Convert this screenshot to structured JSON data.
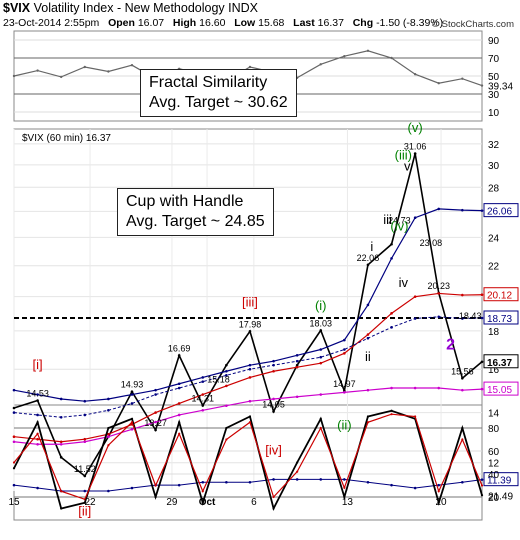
{
  "header": {
    "symbol": "$VIX",
    "name": "Volatility Index - New Methodology",
    "exchange": "INDX",
    "datetime": "23-Oct-2014 2:55pm",
    "open_label": "Open",
    "open": "16.07",
    "high_label": "High",
    "high": "16.60",
    "low_label": "Low",
    "low": "15.68",
    "last_label": "Last",
    "last": "16.37",
    "chg_label": "Chg",
    "chg": "-1.50 (-8.39%)",
    "copyright": "© StockCharts.com"
  },
  "top_panel": {
    "ticks": [
      "90",
      "70",
      "50",
      "30",
      "10"
    ],
    "last_value": "39.34"
  },
  "main_panel": {
    "legend": "$VIX (60 min) 16.37",
    "ticks": [
      "32",
      "30",
      "28",
      "26",
      "24",
      "22",
      "20",
      "18",
      "16",
      "14",
      "12"
    ],
    "right_labels": [
      {
        "text": "26.06",
        "value": 26.06,
        "color": "#000080"
      },
      {
        "text": "20.12",
        "value": 20.12,
        "color": "#cc0000"
      },
      {
        "text": "18.73",
        "value": 18.73,
        "color": "#000080"
      },
      {
        "text": "16.37",
        "value": 16.37,
        "color": "#000000"
      },
      {
        "text": "15.05",
        "value": 15.05,
        "color": "#cc00cc"
      },
      {
        "text": "11.39",
        "value": 11.39,
        "color": "#000080"
      }
    ],
    "boxes": [
      {
        "text": "Fractal Similarity\nAvg. Target ~ 30.62"
      },
      {
        "text": "Cup with Handle\nAvg. Target ~ 24.85"
      }
    ]
  },
  "bottom_panel": {
    "ticks": [
      "80",
      "60",
      "40",
      "20"
    ],
    "last_value": "21.49"
  },
  "x_axis": {
    "labels": [
      "15",
      "22",
      "29",
      "Oct",
      "6",
      "13",
      "20"
    ]
  },
  "chart_data": [
    {
      "type": "line",
      "panel": "top",
      "ylim": [
        0,
        100
      ],
      "x": [
        0,
        6,
        12,
        18,
        24,
        30,
        36,
        42,
        48,
        54,
        60,
        66,
        72,
        78,
        84,
        90,
        96,
        102,
        108,
        114,
        119
      ],
      "series": [
        {
          "values": [
            50,
            56,
            49,
            60,
            55,
            62,
            47,
            58,
            52,
            45,
            60,
            54,
            48,
            63,
            72,
            78,
            70,
            52,
            42,
            47,
            39.34
          ]
        }
      ],
      "ticks": [
        90,
        70,
        50,
        30,
        10
      ],
      "last_value": 39.34
    },
    {
      "type": "line",
      "panel": "main",
      "title": "$VIX (60 min) 16.37",
      "ylim": [
        11,
        33.5
      ],
      "x": [
        0,
        6,
        12,
        18,
        24,
        30,
        36,
        42,
        48,
        54,
        60,
        66,
        72,
        78,
        84,
        90,
        96,
        102,
        108,
        114,
        119
      ],
      "series": [
        {
          "values": [
            14.2,
            14.53,
            12.2,
            11.52,
            13.0,
            14.93,
            13.27,
            16.69,
            14.31,
            16.2,
            17.98,
            14.05,
            16.2,
            18.03,
            14.97,
            22.06,
            23.5,
            31.06,
            20.23,
            15.56,
            16.37
          ]
        },
        {
          "values": [
            15.0,
            14.8,
            14.6,
            14.5,
            14.6,
            14.8,
            15.0,
            15.3,
            15.6,
            15.9,
            16.2,
            16.4,
            16.7,
            17.0,
            17.5,
            19.5,
            22.5,
            25.5,
            26.2,
            26.1,
            26.06
          ]
        },
        {
          "values": [
            13.0,
            12.9,
            12.8,
            12.9,
            13.1,
            13.5,
            14.0,
            14.4,
            14.8,
            15.2,
            15.6,
            15.9,
            16.1,
            16.3,
            16.8,
            17.8,
            19.0,
            20.0,
            20.2,
            20.1,
            20.12
          ]
        },
        {
          "values": [
            14.0,
            13.9,
            13.8,
            13.9,
            14.1,
            14.4,
            14.8,
            15.1,
            15.4,
            15.7,
            16.0,
            16.2,
            16.4,
            16.6,
            17.0,
            17.6,
            18.2,
            18.7,
            18.8,
            18.7,
            18.73
          ]
        },
        {
          "values": [
            12.8,
            12.7,
            12.7,
            12.8,
            13.0,
            13.3,
            13.6,
            13.9,
            14.1,
            14.3,
            14.5,
            14.6,
            14.7,
            14.8,
            14.9,
            15.0,
            15.1,
            15.1,
            15.1,
            15.0,
            15.05
          ]
        },
        {
          "values": [
            11.2,
            11.1,
            11.0,
            11.0,
            11.0,
            11.1,
            11.2,
            11.2,
            11.3,
            11.3,
            11.3,
            11.4,
            11.4,
            11.4,
            11.4,
            11.3,
            11.2,
            11.1,
            11.2,
            11.3,
            11.39
          ]
        }
      ],
      "reference_lines": [
        18.73
      ],
      "annotations": [
        {
          "text": "14.53",
          "x": 6,
          "y": 14.53
        },
        {
          "text": "11.52",
          "x": 18,
          "y": 11.52
        },
        {
          "text": "14.93",
          "x": 30,
          "y": 14.93
        },
        {
          "text": "13.27",
          "x": 36,
          "y": 13.27
        },
        {
          "text": "16.69",
          "x": 42,
          "y": 16.69
        },
        {
          "text": "14.31",
          "x": 48,
          "y": 14.31
        },
        {
          "text": "15.18",
          "x": 52,
          "y": 15.18
        },
        {
          "text": "17.98",
          "x": 60,
          "y": 17.98
        },
        {
          "text": "14.05",
          "x": 66,
          "y": 14.05
        },
        {
          "text": "18.03",
          "x": 78,
          "y": 18.03
        },
        {
          "text": "14.97",
          "x": 84,
          "y": 14.97
        },
        {
          "text": "22.06",
          "x": 90,
          "y": 22.06
        },
        {
          "text": "24.73",
          "x": 98,
          "y": 24.73
        },
        {
          "text": "31.06",
          "x": 102,
          "y": 31.06
        },
        {
          "text": "23.08",
          "x": 106,
          "y": 23.08
        },
        {
          "text": "20.23",
          "x": 108,
          "y": 20.23
        },
        {
          "text": "18.43",
          "x": 116,
          "y": 18.43
        },
        {
          "text": "15.56",
          "x": 114,
          "y": 15.56
        }
      ],
      "wave_labels": [
        {
          "text": "[i]",
          "x": 6,
          "y": 16.0,
          "color": "#cc0000"
        },
        {
          "text": "[ii]",
          "x": 18,
          "y": 10.2,
          "color": "#cc0000"
        },
        {
          "text": "[iii]",
          "x": 60,
          "y": 19.4,
          "color": "#cc0000"
        },
        {
          "text": "[iv]",
          "x": 66,
          "y": 12.3,
          "color": "#cc0000"
        },
        {
          "text": "(i)",
          "x": 78,
          "y": 19.2,
          "color": "#008000"
        },
        {
          "text": "(ii)",
          "x": 84,
          "y": 13.3,
          "color": "#008000"
        },
        {
          "text": "i",
          "x": 91,
          "y": 23.0,
          "color": "#000000"
        },
        {
          "text": "ii",
          "x": 90,
          "y": 16.4,
          "color": "#000000"
        },
        {
          "text": "iii",
          "x": 95,
          "y": 25.0,
          "color": "#000000"
        },
        {
          "text": "iv",
          "x": 99,
          "y": 20.6,
          "color": "#000000"
        },
        {
          "text": "v",
          "x": 100,
          "y": 29.5,
          "color": "#000000"
        },
        {
          "text": "(iii)",
          "x": 99,
          "y": 30.5,
          "color": "#008000"
        },
        {
          "text": "(iv)",
          "x": 98,
          "y": 24.5,
          "color": "#008000"
        },
        {
          "text": "(v)",
          "x": 102,
          "y": 33.2,
          "color": "#008000"
        },
        {
          "text": "2",
          "x": 111,
          "y": 17.0,
          "color": "#9400d3"
        }
      ]
    },
    {
      "type": "line",
      "panel": "bottom",
      "ylim": [
        0,
        100
      ],
      "x": [
        0,
        6,
        12,
        18,
        24,
        30,
        36,
        42,
        48,
        54,
        60,
        66,
        72,
        78,
        84,
        90,
        96,
        102,
        108,
        114,
        119
      ],
      "series": [
        {
          "values": [
            45,
            85,
            10,
            15,
            80,
            88,
            20,
            85,
            15,
            80,
            90,
            10,
            50,
            88,
            20,
            90,
            95,
            88,
            15,
            80,
            21.49
          ]
        },
        {
          "values": [
            50,
            75,
            25,
            18,
            65,
            85,
            30,
            75,
            25,
            70,
            85,
            20,
            42,
            80,
            28,
            85,
            92,
            90,
            25,
            70,
            30
          ]
        }
      ],
      "ticks": [
        80,
        60,
        40,
        20
      ],
      "last_value": 21.49
    }
  ],
  "label_positions_note": "",
  "colors": {
    "price": "#000000",
    "upper_bb": "#000080",
    "sma_red": "#cc0000",
    "sma_green": "#008000",
    "sma_magenta": "#cc00cc",
    "stoch_k": "#000000",
    "stoch_d": "#cc0000"
  }
}
